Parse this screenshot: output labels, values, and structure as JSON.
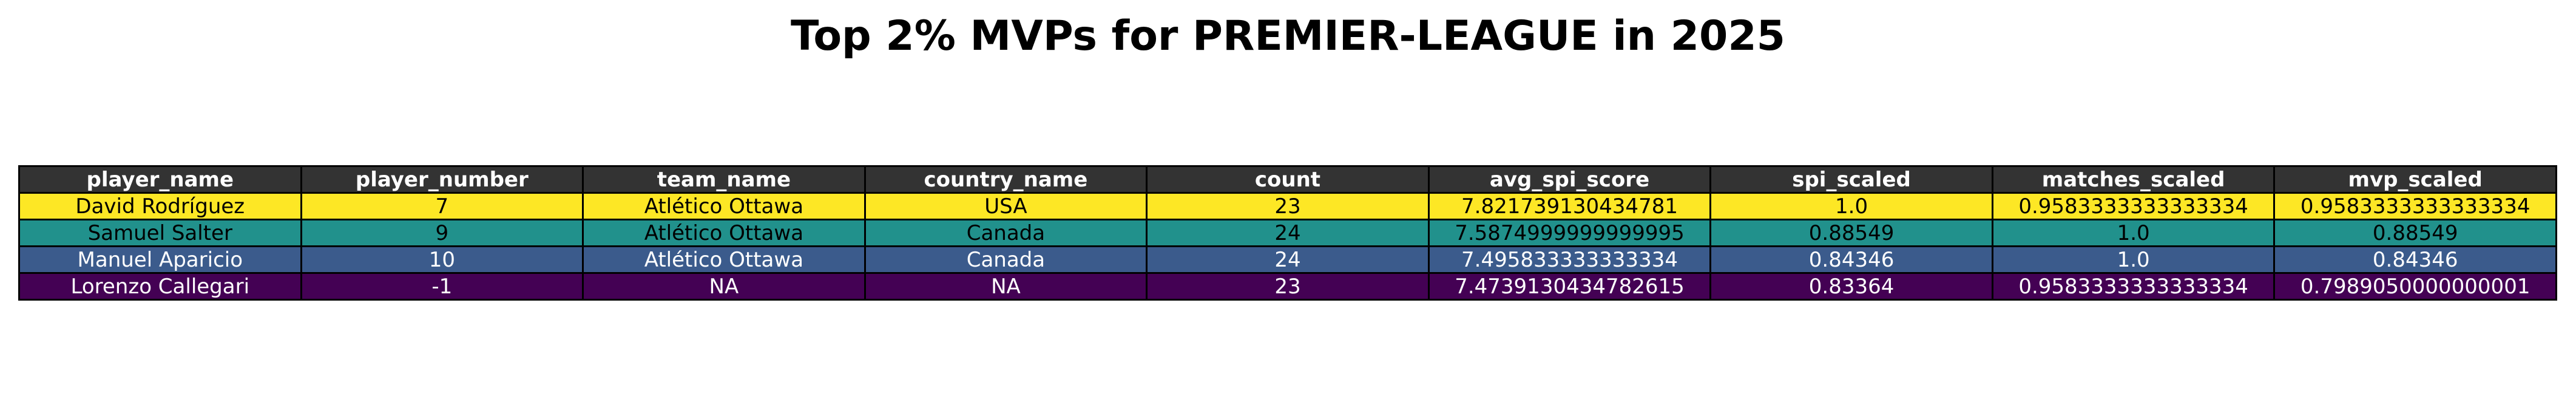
{
  "chart_data": {
    "type": "table",
    "title": "Top 2% MVPs for PREMIER-LEAGUE in 2025",
    "columns": [
      "player_name",
      "player_number",
      "team_name",
      "country_name",
      "count",
      "avg_spi_score",
      "spi_scaled",
      "matches_scaled",
      "mvp_scaled"
    ],
    "rows": [
      {
        "cells": [
          "David Rodríguez",
          "7",
          "Atlético Ottawa",
          "USA",
          "23",
          "7.821739130434781",
          "1.0",
          "0.9583333333333334",
          "0.9583333333333334"
        ],
        "bg": "#fde725",
        "fg": "#000000"
      },
      {
        "cells": [
          "Samuel Salter",
          "9",
          "Atlético Ottawa",
          "Canada",
          "24",
          "7.5874999999999995",
          "0.88549",
          "1.0",
          "0.88549"
        ],
        "bg": "#21918c",
        "fg": "#000000"
      },
      {
        "cells": [
          "Manuel Aparicio",
          "10",
          "Atlético Ottawa",
          "Canada",
          "24",
          "7.495833333333334",
          "0.84346",
          "1.0",
          "0.84346"
        ],
        "bg": "#3b5b8c",
        "fg": "#ffffff"
      },
      {
        "cells": [
          "Lorenzo Callegari",
          "-1",
          "NA",
          "NA",
          "23",
          "7.4739130434782615",
          "0.83364",
          "0.9583333333333334",
          "0.7989050000000001"
        ],
        "bg": "#440154",
        "fg": "#ffffff"
      }
    ],
    "header_bg": "#333333",
    "header_fg": "#ffffff"
  }
}
